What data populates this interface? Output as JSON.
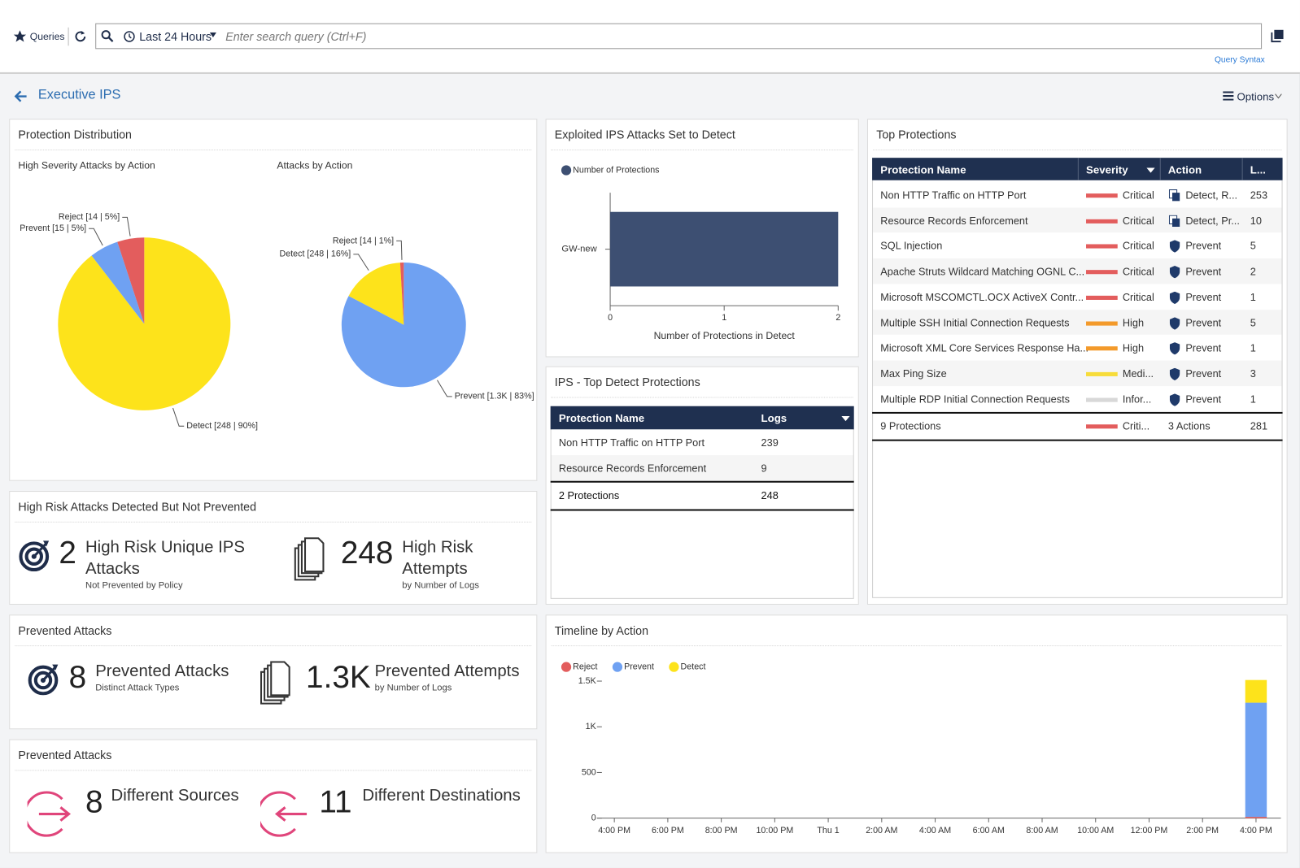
{
  "toolbar": {
    "queries": "Queries",
    "time_range": "Last 24 Hours",
    "search_placeholder": "Enter search query (Ctrl+F)",
    "query_syntax": "Query Syntax"
  },
  "header": {
    "title": "Executive IPS",
    "options": "Options"
  },
  "protection_distribution": {
    "title": "Protection Distribution",
    "charts": [
      {
        "type": "pie",
        "title": "High Severity Attacks by Action",
        "values": [
          248,
          15,
          14
        ],
        "value_labels": [
          "Detect [248 | 90%]",
          "Prevent [15 | 5%]",
          "Reject [14 | 5%]"
        ],
        "colors": [
          "#fde31b",
          "#6fa1f2",
          "#e35d5d"
        ]
      },
      {
        "type": "pie",
        "title": "Attacks by Action",
        "values": [
          1250,
          248,
          14
        ],
        "value_labels": [
          "Prevent [1.3K | 83%]",
          "Detect [248 | 16%]",
          "Reject [14 | 1%]"
        ],
        "colors": [
          "#6fa1f2",
          "#fde31b",
          "#e35d5d"
        ]
      }
    ]
  },
  "exploited": {
    "title": "Exploited IPS Attacks Set to Detect",
    "chart": {
      "type": "bar",
      "orientation": "horizontal",
      "categories": [
        "GW-new"
      ],
      "series": [
        {
          "name": "Number of Protections",
          "color": "#3d4f72",
          "values": [
            2
          ]
        }
      ],
      "xlim": [
        0,
        2
      ],
      "xticks": [
        0,
        1,
        2
      ],
      "x_label": "Number of Protections in Detect"
    }
  },
  "top_detect": {
    "title": "IPS - Top Detect Protections",
    "columns": [
      "Protection Name",
      "Logs"
    ],
    "rows": [
      [
        "Non HTTP Traffic on HTTP Port",
        239
      ],
      [
        "Resource Records Enforcement",
        9
      ]
    ],
    "footer": [
      "2 Protections",
      248
    ]
  },
  "top_protections": {
    "title": "Top Protections",
    "columns": [
      "Protection Name",
      "Severity",
      "Action",
      "L..."
    ],
    "rows": [
      {
        "name": "Non HTTP Traffic on HTTP Port",
        "severity": "Critical",
        "severity_color": "#e35d5d",
        "action": "Detect, R...",
        "action_icon": "copy",
        "logs": 253
      },
      {
        "name": "Resource Records Enforcement",
        "severity": "Critical",
        "severity_color": "#e35d5d",
        "action": "Detect, Pr...",
        "action_icon": "copy",
        "logs": 10
      },
      {
        "name": "SQL Injection",
        "severity": "Critical",
        "severity_color": "#e35d5d",
        "action": "Prevent",
        "action_icon": "shield",
        "logs": 5
      },
      {
        "name": "Apache Struts Wildcard Matching OGNL C...",
        "severity": "Critical",
        "severity_color": "#e35d5d",
        "action": "Prevent",
        "action_icon": "shield",
        "logs": 2
      },
      {
        "name": "Microsoft MSCOMCTL.OCX ActiveX Contr...",
        "severity": "Critical",
        "severity_color": "#e35d5d",
        "action": "Prevent",
        "action_icon": "shield",
        "logs": 1
      },
      {
        "name": "Multiple SSH Initial Connection Requests",
        "severity": "High",
        "severity_color": "#f39a2b",
        "action": "Prevent",
        "action_icon": "shield",
        "logs": 5
      },
      {
        "name": "Microsoft XML Core Services Response Ha...",
        "severity": "High",
        "severity_color": "#f39a2b",
        "action": "Prevent",
        "action_icon": "shield",
        "logs": 1
      },
      {
        "name": "Max Ping Size",
        "severity": "Medi...",
        "severity_color": "#f7dc3a",
        "action": "Prevent",
        "action_icon": "shield",
        "logs": 3
      },
      {
        "name": "Multiple RDP Initial Connection Requests",
        "severity": "Infor...",
        "severity_color": "#d8d8d8",
        "action": "Prevent",
        "action_icon": "shield",
        "logs": 1
      }
    ],
    "footer": {
      "name": "9 Protections",
      "severity": "Criti...",
      "severity_color": "#e35d5d",
      "action": "3 Actions",
      "logs": 281
    }
  },
  "high_risk": {
    "title": "High Risk Attacks Detected But Not Prevented",
    "items": [
      {
        "value": 2,
        "label": "High Risk Unique IPS Attacks",
        "sub": "Not Prevented by Policy"
      },
      {
        "value": 248,
        "label": "High Risk Attempts",
        "sub": "by Number of Logs"
      }
    ]
  },
  "prevented": {
    "title": "Prevented Attacks",
    "items": [
      {
        "value": 8,
        "label": "Prevented Attacks",
        "sub": "Distinct Attack Types"
      },
      {
        "value": "1.3K",
        "label": "Prevented Attempts",
        "sub": "by Number of Logs"
      }
    ]
  },
  "sources": {
    "title": "Prevented Attacks",
    "items": [
      {
        "value": 8,
        "label": "Different Sources"
      },
      {
        "value": 11,
        "label": "Different Destinations"
      }
    ]
  },
  "timeline": {
    "title": "Timeline by Action",
    "chart": {
      "type": "bar",
      "stacked": true,
      "categories": [
        "4:00 PM",
        "6:00 PM",
        "8:00 PM",
        "10:00 PM",
        "Thu 1",
        "2:00 AM",
        "4:00 AM",
        "6:00 AM",
        "8:00 AM",
        "10:00 AM",
        "12:00 PM",
        "2:00 PM",
        "4:00 PM"
      ],
      "series": [
        {
          "name": "Reject",
          "color": "#e35d5d",
          "values": [
            0,
            0,
            0,
            0,
            0,
            0,
            0,
            0,
            0,
            0,
            0,
            0,
            14
          ]
        },
        {
          "name": "Prevent",
          "color": "#6fa1f2",
          "values": [
            0,
            0,
            0,
            0,
            0,
            0,
            0,
            0,
            0,
            0,
            0,
            0,
            1250
          ]
        },
        {
          "name": "Detect",
          "color": "#fde31b",
          "values": [
            0,
            0,
            0,
            0,
            0,
            0,
            0,
            0,
            0,
            0,
            0,
            0,
            248
          ]
        }
      ],
      "ylim": [
        0,
        1500
      ],
      "yticks": [
        0,
        500,
        {
          "value": 1000,
          "label": "1K"
        },
        {
          "value": 1500,
          "label": "1.5K"
        }
      ]
    }
  }
}
